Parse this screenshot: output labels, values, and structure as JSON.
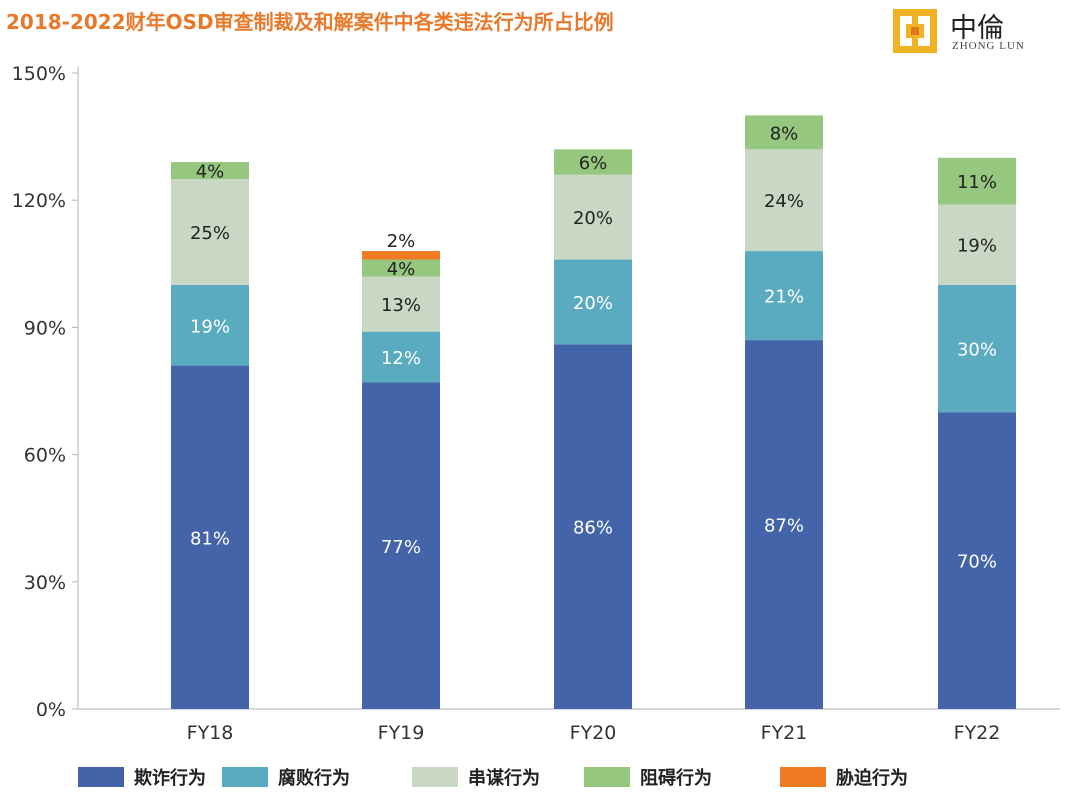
{
  "title": "2018-2022财年OSD审查制裁及和解案件中各类违法行为所占比例",
  "logo": {
    "name_cn": "中倫",
    "name_en": "ZHONG LUN",
    "icon": "zhonglun-logo-icon"
  },
  "chart_data": {
    "type": "bar",
    "stacked": true,
    "categories": [
      "FY18",
      "FY19",
      "FY20",
      "FY21",
      "FY22"
    ],
    "ylim": [
      0,
      150
    ],
    "yticks": [
      0,
      30,
      60,
      90,
      120,
      150
    ],
    "ytick_labels": [
      "0%",
      "30%",
      "60%",
      "90%",
      "120%",
      "150%"
    ],
    "grid": false,
    "legend_position": "bottom",
    "series": [
      {
        "name": "欺诈行为",
        "color": "#4364a8",
        "label_color": "#ffffff",
        "values": [
          81,
          77,
          86,
          87,
          70
        ],
        "labels": [
          "81%",
          "77%",
          "86%",
          "87%",
          "70%"
        ]
      },
      {
        "name": "腐败行为",
        "color": "#5aabc0",
        "label_color": "#ffffff",
        "values": [
          19,
          12,
          20,
          21,
          30
        ],
        "labels": [
          "19%",
          "12%",
          "20%",
          "21%",
          "30%"
        ]
      },
      {
        "name": "串谋行为",
        "color": "#c9d8c5",
        "label_color": "#222222",
        "values": [
          25,
          13,
          20,
          24,
          19
        ],
        "labels": [
          "25%",
          "13%",
          "20%",
          "24%",
          "19%"
        ]
      },
      {
        "name": "阻碍行为",
        "color": "#95c77f",
        "label_color": "#222222",
        "values": [
          4,
          4,
          6,
          8,
          11
        ],
        "labels": [
          "4%",
          "4%",
          "6%",
          "8%",
          "11%"
        ]
      },
      {
        "name": "胁迫行为",
        "color": "#ef7a22",
        "label_color": "#222222",
        "values": [
          0,
          2,
          0,
          0,
          0
        ],
        "labels": [
          "",
          "2%",
          "",
          "",
          ""
        ]
      }
    ]
  }
}
